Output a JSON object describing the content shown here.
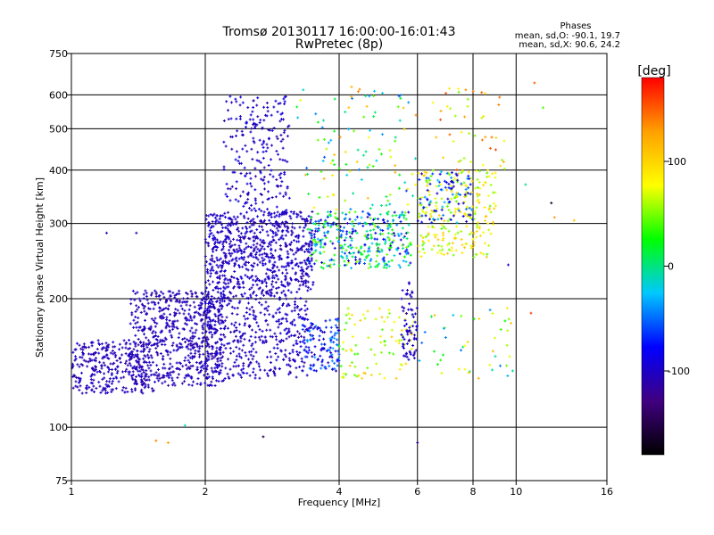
{
  "chart_data": {
    "type": "scatter",
    "title": "Tromsø 20130117 16:00:00-16:01:43",
    "subtitle": "RwPretec (8p)",
    "xlabel": "Frequency [MHz]",
    "ylabel": "Stationary phase Virtual Height [km]",
    "x_scale": "log",
    "y_scale": "log",
    "xlim": [
      1,
      16
    ],
    "ylim": [
      75,
      750
    ],
    "x_ticks": [
      1,
      2,
      4,
      6,
      8,
      10,
      16
    ],
    "x_tick_labels": [
      "1",
      "2",
      "4",
      "6",
      "8",
      "10",
      "16"
    ],
    "y_ticks": [
      75,
      100,
      200,
      300,
      400,
      500,
      600,
      750
    ],
    "y_tick_labels": [
      "75",
      "100",
      "200",
      "300",
      "400",
      "500",
      "600",
      "750"
    ],
    "x_gridlines": [
      2,
      4,
      6,
      8,
      10
    ],
    "y_gridlines": [
      100,
      200,
      300,
      400,
      500,
      600
    ],
    "grid": true,
    "stats": {
      "heading": "Phases",
      "line_o": "mean, sd,O: -90.1, 19.7",
      "line_x": "mean, sd,X:  90.6, 24.2"
    },
    "colorbar": {
      "label": "[deg]",
      "min": -180,
      "max": 180,
      "ticks": [
        100,
        0,
        -100
      ],
      "tick_labels": [
        "100",
        "0",
        "-100"
      ]
    },
    "color_scale": [
      "#000000",
      "#400080",
      "#0000ff",
      "#00c8ff",
      "#00ff00",
      "#ffff00",
      "#ffa000",
      "#ff0000"
    ],
    "clusters": [
      {
        "f": [
          1.0,
          1.55
        ],
        "h": [
          120,
          160
        ],
        "phase": [
          -115,
          -95
        ],
        "n": 300
      },
      {
        "f": [
          1.35,
          2.2
        ],
        "h": [
          125,
          210
        ],
        "phase": [
          -115,
          -95
        ],
        "n": 650
      },
      {
        "f": [
          2.0,
          3.4
        ],
        "h": [
          130,
          210
        ],
        "phase": [
          -115,
          -90
        ],
        "n": 450
      },
      {
        "f": [
          2.0,
          3.5
        ],
        "h": [
          210,
          320
        ],
        "phase": [
          -115,
          -90
        ],
        "n": 700
      },
      {
        "f": [
          2.2,
          3.1
        ],
        "h": [
          320,
          600
        ],
        "phase": [
          -115,
          -85
        ],
        "n": 220
      },
      {
        "f": [
          3.4,
          5.8
        ],
        "h": [
          235,
          320
        ],
        "phase": [
          -110,
          60
        ],
        "n": 380
      },
      {
        "f": [
          3.2,
          6.0
        ],
        "h": [
          320,
          640
        ],
        "phase": [
          -60,
          140
        ],
        "n": 110
      },
      {
        "f": [
          3.3,
          4.0
        ],
        "h": [
          135,
          180
        ],
        "phase": [
          -110,
          -30
        ],
        "n": 130
      },
      {
        "f": [
          4.0,
          5.9
        ],
        "h": [
          130,
          190
        ],
        "phase": [
          30,
          110
        ],
        "n": 90
      },
      {
        "f": [
          5.5,
          6.0
        ],
        "h": [
          140,
          220
        ],
        "phase": [
          -110,
          -90
        ],
        "n": 70
      },
      {
        "f": [
          6.0,
          9.0
        ],
        "h": [
          250,
          400
        ],
        "phase": [
          40,
          110
        ],
        "n": 240
      },
      {
        "f": [
          6.0,
          8.0
        ],
        "h": [
          300,
          400
        ],
        "phase": [
          -110,
          -20
        ],
        "n": 90
      },
      {
        "f": [
          6.0,
          10.0
        ],
        "h": [
          130,
          190
        ],
        "phase": [
          -50,
          120
        ],
        "n": 45
      },
      {
        "f": [
          6.5,
          9.5
        ],
        "h": [
          400,
          650
        ],
        "phase": [
          40,
          160
        ],
        "n": 45
      }
    ],
    "points_extra": [
      {
        "f": 1.2,
        "h": 285,
        "phase": -105
      },
      {
        "f": 1.4,
        "h": 285,
        "phase": -100
      },
      {
        "f": 1.55,
        "h": 93,
        "phase": 140
      },
      {
        "f": 1.65,
        "h": 92,
        "phase": 130
      },
      {
        "f": 1.8,
        "h": 101,
        "phase": -10
      },
      {
        "f": 2.7,
        "h": 95,
        "phase": -150
      },
      {
        "f": 6.0,
        "h": 92,
        "phase": -120
      },
      {
        "f": 9.6,
        "h": 240,
        "phase": -95
      },
      {
        "f": 10.8,
        "h": 185,
        "phase": 160
      },
      {
        "f": 11.0,
        "h": 640,
        "phase": 150
      },
      {
        "f": 11.5,
        "h": 560,
        "phase": 40
      },
      {
        "f": 12.0,
        "h": 335,
        "phase": -160
      },
      {
        "f": 12.2,
        "h": 310,
        "phase": 130
      },
      {
        "f": 13.5,
        "h": 305,
        "phase": 110
      },
      {
        "f": 10.5,
        "h": 370,
        "phase": 0
      }
    ],
    "random_seed": 20130117
  }
}
